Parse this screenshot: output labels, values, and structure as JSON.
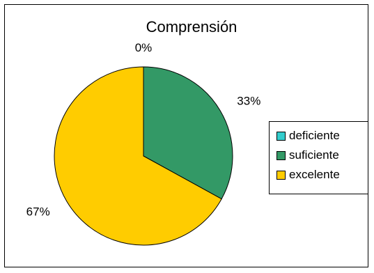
{
  "chart_data": {
    "type": "pie",
    "title": "Comprensión",
    "categories": [
      "deficiente",
      "suficiente",
      "excelente"
    ],
    "values": [
      0,
      33,
      67
    ],
    "labels": [
      "0%",
      "33%",
      "67%"
    ],
    "colors": [
      "#33CCCC",
      "#339966",
      "#FFCC00"
    ],
    "legend_position": "right"
  }
}
